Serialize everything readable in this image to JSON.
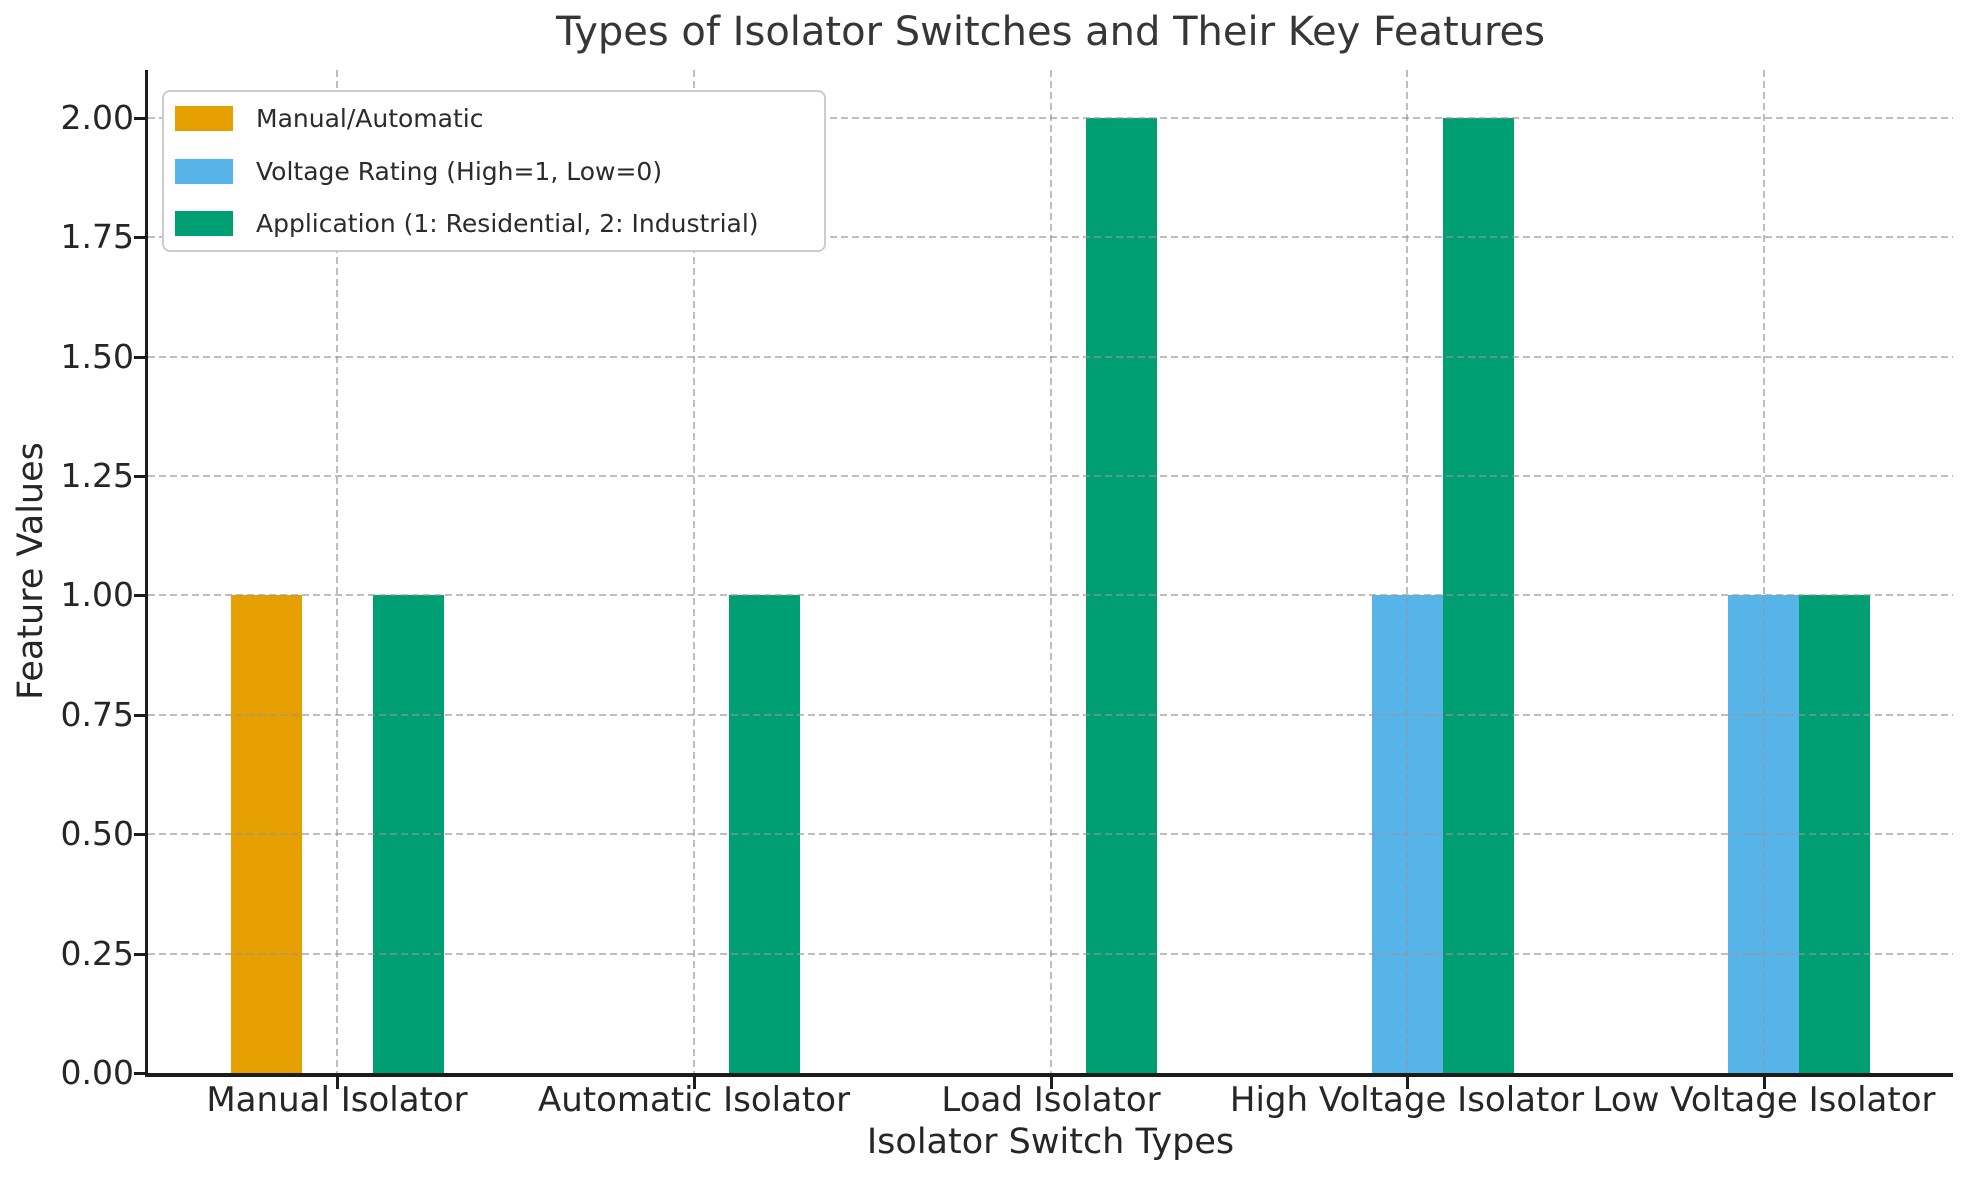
{
  "chart_data": {
    "type": "bar",
    "title": "Types of Isolator Switches and Their Key Features",
    "xlabel": "Isolator Switch Types",
    "ylabel": "Feature Values",
    "categories": [
      "Manual Isolator",
      "Automatic Isolator",
      "Load Isolator",
      "High Voltage Isolator",
      "Low Voltage Isolator"
    ],
    "series": [
      {
        "name": "Manual/Automatic",
        "color": "#E69F00",
        "values": [
          1,
          0,
          0,
          0,
          0
        ]
      },
      {
        "name": "Voltage Rating (High=1, Low=0)",
        "color": "#56B4E9",
        "values": [
          0,
          0,
          0,
          1,
          1
        ]
      },
      {
        "name": "Application (1: Residential, 2: Industrial)",
        "color": "#009E73",
        "values": [
          1,
          1,
          2,
          2,
          1
        ]
      }
    ],
    "bar_width": 0.2,
    "ylim": [
      0,
      2.1
    ],
    "yticks": [
      0,
      0.25,
      0.5,
      0.75,
      1.0,
      1.25,
      1.5,
      1.75,
      2.0
    ],
    "ytick_labels": [
      "0.00",
      "0.25",
      "0.50",
      "0.75",
      "1.00",
      "1.25",
      "1.50",
      "1.75",
      "2.00"
    ],
    "grid": "dashed gridlines on both axes, drawn above bars",
    "legend_position": "upper left",
    "colors": {
      "grid": "#bdbdbd",
      "spine": "#1c1c1c",
      "text": "#262626"
    }
  }
}
